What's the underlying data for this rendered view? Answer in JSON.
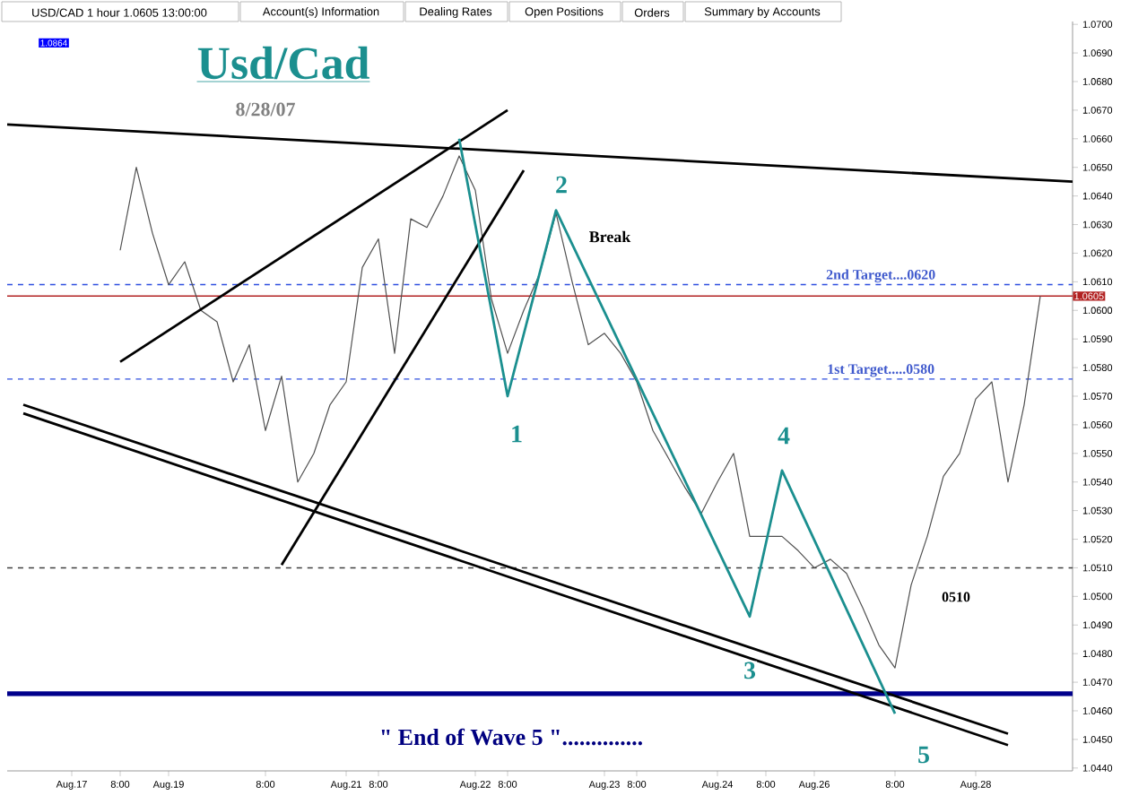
{
  "chart_data": {
    "type": "line",
    "title": "Usd/Cad",
    "subtitle": "8/28/07",
    "annotations": [
      "USD/CAD 1 hour 1.0605 13:00:00",
      "Account(s) Information",
      "Dealing Rates",
      "Open Positions",
      "Orders",
      "Summary by Accounts",
      "1.0864",
      "\" End of Wave 5 \"..............",
      "1",
      "2",
      "3",
      "4",
      "5",
      "Break",
      "0510"
    ],
    "categories": [
      null,
      null,
      null,
      null,
      "Aug.17",
      null,
      null,
      "8:00",
      null,
      null,
      "Aug.19",
      null,
      null,
      null,
      null,
      null,
      "8:00",
      null,
      null,
      null,
      null,
      "Aug.21",
      null,
      "8:00",
      null,
      null,
      null,
      null,
      null,
      "Aug.22",
      null,
      "8:00",
      null,
      null,
      null,
      null,
      null,
      "Aug.23",
      null,
      "8:00",
      null,
      null,
      null,
      null,
      "Aug.24",
      null,
      null,
      "8:00",
      null,
      null,
      "Aug.26",
      null,
      null,
      null,
      null,
      "8:00",
      null,
      null,
      null,
      null,
      "Aug.28",
      null,
      null,
      null,
      null,
      null,
      null
    ],
    "series": [
      {
        "color": "#505050",
        "values": [
          null,
          null,
          null,
          null,
          null,
          null,
          null,
          1.0621,
          1.065,
          1.0627,
          1.0609,
          1.0617,
          1.06,
          1.0596,
          1.0575,
          1.0588,
          1.0558,
          1.0577,
          1.054,
          1.055,
          1.0567,
          1.0575,
          1.0615,
          1.0625,
          1.0585,
          1.0632,
          1.0629,
          1.064,
          1.0654,
          1.0642,
          1.0604,
          1.0585,
          1.06,
          1.0613,
          1.0634,
          1.061,
          1.0588,
          1.0592,
          1.0585,
          1.0575,
          1.0558,
          1.0548,
          1.0538,
          1.0529,
          1.054,
          1.055,
          1.0521,
          1.0521,
          1.0521,
          1.0516,
          1.051,
          1.0513,
          1.0508,
          1.0496,
          1.0483,
          1.0475,
          1.0504,
          1.0521,
          1.0542,
          1.055,
          1.0569,
          1.0575,
          1.054,
          1.0567,
          1.0605,
          null,
          null
        ]
      },
      {
        "color": "#000000",
        "values": [
          1.0665,
          null,
          null,
          null,
          null,
          null,
          null,
          null,
          null,
          null,
          null,
          null,
          null,
          null,
          null,
          null,
          null,
          null,
          null,
          null,
          null,
          null,
          null,
          null,
          null,
          null,
          null,
          null,
          null,
          null,
          null,
          null,
          null,
          null,
          null,
          null,
          null,
          null,
          null,
          null,
          null,
          null,
          null,
          null,
          null,
          null,
          null,
          null,
          null,
          null,
          null,
          null,
          null,
          null,
          null,
          null,
          null,
          null,
          null,
          null,
          null,
          null,
          null,
          null,
          null,
          null,
          1.0645
        ]
      },
      {
        "color": "#000000",
        "values": [
          null,
          null,
          null,
          null,
          null,
          null,
          null,
          1.0582,
          null,
          null,
          null,
          null,
          null,
          null,
          null,
          null,
          null,
          null,
          null,
          null,
          null,
          null,
          null,
          null,
          null,
          null,
          null,
          null,
          null,
          null,
          null,
          1.067,
          null,
          null,
          null,
          null,
          null,
          null,
          null,
          null,
          null,
          null,
          null,
          null,
          null,
          null,
          null,
          null,
          null,
          null,
          null,
          null,
          null,
          null,
          null,
          null,
          null,
          null,
          null,
          null,
          null,
          null,
          null,
          null,
          null,
          null,
          null
        ]
      },
      {
        "color": "#000000",
        "values": [
          null,
          null,
          null,
          null,
          null,
          null,
          null,
          null,
          null,
          null,
          null,
          null,
          null,
          null,
          null,
          null,
          null,
          1.0511,
          null,
          null,
          null,
          null,
          null,
          null,
          null,
          null,
          null,
          null,
          null,
          null,
          null,
          null,
          1.0649,
          null,
          null,
          null,
          null,
          null,
          null,
          null,
          null,
          null,
          null,
          null,
          null,
          null,
          null,
          null,
          null,
          null,
          null,
          null,
          null,
          null,
          null,
          null,
          null,
          null,
          null,
          null,
          null,
          null,
          null,
          null,
          null,
          null,
          null
        ]
      },
      {
        "color": "#000000",
        "values": [
          null,
          1.0567,
          null,
          null,
          null,
          null,
          null,
          null,
          null,
          null,
          null,
          null,
          null,
          null,
          null,
          null,
          null,
          null,
          null,
          null,
          null,
          null,
          null,
          null,
          null,
          null,
          null,
          null,
          null,
          null,
          null,
          null,
          null,
          null,
          null,
          null,
          null,
          null,
          null,
          null,
          null,
          null,
          null,
          null,
          null,
          null,
          null,
          null,
          null,
          null,
          null,
          null,
          null,
          null,
          null,
          null,
          null,
          null,
          null,
          null,
          null,
          null,
          1.0452,
          null,
          null,
          null,
          null
        ]
      },
      {
        "color": "#000000",
        "values": [
          null,
          1.0564,
          null,
          null,
          null,
          null,
          null,
          null,
          null,
          null,
          null,
          null,
          null,
          null,
          null,
          null,
          null,
          null,
          null,
          null,
          null,
          null,
          null,
          null,
          null,
          null,
          null,
          null,
          null,
          null,
          null,
          null,
          null,
          null,
          null,
          null,
          null,
          null,
          null,
          null,
          null,
          null,
          null,
          null,
          null,
          null,
          null,
          null,
          null,
          null,
          null,
          null,
          null,
          null,
          null,
          null,
          null,
          null,
          null,
          null,
          null,
          null,
          1.0448,
          null,
          null,
          null,
          null
        ]
      },
      {
        "color": "#1b8f8f",
        "values": [
          null,
          null,
          null,
          null,
          null,
          null,
          null,
          null,
          null,
          null,
          null,
          null,
          null,
          null,
          null,
          null,
          null,
          null,
          null,
          null,
          null,
          null,
          null,
          null,
          null,
          null,
          null,
          null,
          1.066,
          null,
          null,
          1.057,
          null,
          null,
          1.0635,
          null,
          null,
          null,
          null,
          null,
          null,
          null,
          null,
          null,
          null,
          null,
          1.0493,
          null,
          1.0544,
          null,
          null,
          null,
          null,
          null,
          null,
          1.0459,
          null,
          null,
          null,
          null,
          null,
          null,
          null,
          null,
          null,
          null,
          null
        ]
      }
    ],
    "ref_lines": [
      {
        "axis": "y",
        "value": 1.0605,
        "label": "1.0605",
        "color": "#b22222",
        "line_style": "solid"
      },
      {
        "axis": "y",
        "value": 1.0466,
        "color": "#00008b",
        "line_style": "solid"
      },
      {
        "axis": "y",
        "value": 1.0609,
        "label": "2nd Target....0620",
        "color": "#3050e0",
        "line_style": "dashed"
      },
      {
        "axis": "y",
        "value": 1.0576,
        "label": "1st Target.....0580",
        "color": "#3050e0",
        "line_style": "dashed"
      },
      {
        "axis": "y",
        "value": 1.051,
        "color": "#404040",
        "line_style": "dashed"
      }
    ],
    "ylim": [
      1.0439,
      1.0701
    ],
    "yticks": [
      {
        "value": 1.044,
        "label": "1.0440"
      },
      {
        "value": 1.045,
        "label": "1.0450"
      },
      {
        "value": 1.046,
        "label": "1.0460"
      },
      {
        "value": 1.047,
        "label": "1.0470"
      },
      {
        "value": 1.048,
        "label": "1.0480"
      },
      {
        "value": 1.049,
        "label": "1.0490"
      },
      {
        "value": 1.05,
        "label": "1.0500"
      },
      {
        "value": 1.051,
        "label": "1.0510"
      },
      {
        "value": 1.052,
        "label": "1.0520"
      },
      {
        "value": 1.053,
        "label": "1.0530"
      },
      {
        "value": 1.054,
        "label": "1.0540"
      },
      {
        "value": 1.055,
        "label": "1.0550"
      },
      {
        "value": 1.056,
        "label": "1.0560"
      },
      {
        "value": 1.057,
        "label": "1.0570"
      },
      {
        "value": 1.058,
        "label": "1.0580"
      },
      {
        "value": 1.059,
        "label": "1.0590"
      },
      {
        "value": 1.06,
        "label": "1.0600"
      },
      {
        "value": 1.061,
        "label": "1.0610"
      },
      {
        "value": 1.062,
        "label": "1.0620"
      },
      {
        "value": 1.063,
        "label": "1.0630"
      },
      {
        "value": 1.064,
        "label": "1.0640"
      },
      {
        "value": 1.065,
        "label": "1.0650"
      },
      {
        "value": 1.066,
        "label": "1.0660"
      },
      {
        "value": 1.067,
        "label": "1.0670"
      },
      {
        "value": 1.068,
        "label": "1.0680"
      },
      {
        "value": 1.069,
        "label": "1.0690"
      },
      {
        "value": 1.07,
        "label": "1.0700"
      }
    ],
    "grid": false
  }
}
